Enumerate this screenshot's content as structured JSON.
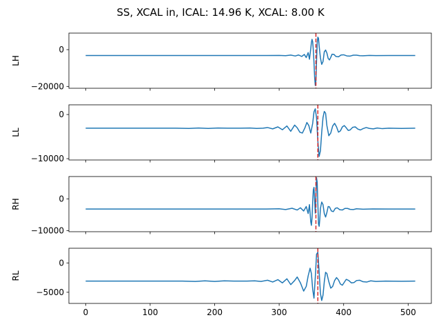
{
  "title": "SS, XCAL in, ICAL: 14.96 K, XCAL: 8.00 K",
  "colors": {
    "series": "#1f77b4",
    "marker": "#d62728",
    "axis": "#000000"
  },
  "chart_data": [
    {
      "type": "line",
      "ylabel": "LH",
      "xlim": [
        -26,
        536
      ],
      "ylim": [
        -21000,
        9000
      ],
      "yticks": [
        0,
        -20000
      ],
      "yticklabels": [
        "0",
        "−20000"
      ],
      "baseline": -3200,
      "peak_x": 357,
      "vline_x": 357,
      "points": [
        [
          0,
          -3200
        ],
        [
          280,
          -3200
        ],
        [
          300,
          -3150
        ],
        [
          310,
          -3300
        ],
        [
          318,
          -2950
        ],
        [
          325,
          -3450
        ],
        [
          330,
          -2900
        ],
        [
          335,
          -3700
        ],
        [
          339,
          -2600
        ],
        [
          342,
          -4300
        ],
        [
          345,
          -1600
        ],
        [
          347,
          -5200
        ],
        [
          349,
          500
        ],
        [
          350,
          3800
        ],
        [
          351,
          5600
        ],
        [
          352,
          4200
        ],
        [
          353,
          -500
        ],
        [
          354,
          -6800
        ],
        [
          355,
          -15000
        ],
        [
          356,
          -19500
        ],
        [
          357,
          -17000
        ],
        [
          358,
          -6000
        ],
        [
          359,
          3500
        ],
        [
          360,
          6800
        ],
        [
          361,
          6200
        ],
        [
          362,
          2000
        ],
        [
          364,
          -4500
        ],
        [
          366,
          -8000
        ],
        [
          368,
          -6500
        ],
        [
          370,
          -1200
        ],
        [
          372,
          -200
        ],
        [
          374,
          -1800
        ],
        [
          376,
          -4800
        ],
        [
          378,
          -5600
        ],
        [
          380,
          -4200
        ],
        [
          382,
          -2500
        ],
        [
          385,
          -2600
        ],
        [
          388,
          -3700
        ],
        [
          392,
          -3900
        ],
        [
          396,
          -2900
        ],
        [
          400,
          -2800
        ],
        [
          405,
          -3400
        ],
        [
          410,
          -3500
        ],
        [
          415,
          -3000
        ],
        [
          420,
          -3000
        ],
        [
          425,
          -3300
        ],
        [
          430,
          -3350
        ],
        [
          440,
          -3150
        ],
        [
          450,
          -3250
        ],
        [
          470,
          -3200
        ],
        [
          511,
          -3200
        ]
      ]
    },
    {
      "type": "line",
      "ylabel": "LL",
      "xlim": [
        -26,
        536
      ],
      "ylim": [
        -10300,
        2200
      ],
      "yticks": [
        0,
        -10000
      ],
      "yticklabels": [
        "0",
        "−10000"
      ],
      "baseline": -3100,
      "peak_x": 360,
      "vline_x": 360,
      "points": [
        [
          0,
          -3100
        ],
        [
          140,
          -3100
        ],
        [
          160,
          -3150
        ],
        [
          175,
          -3050
        ],
        [
          190,
          -3150
        ],
        [
          205,
          -3050
        ],
        [
          220,
          -3100
        ],
        [
          240,
          -3100
        ],
        [
          255,
          -3050
        ],
        [
          265,
          -3150
        ],
        [
          275,
          -3100
        ],
        [
          282,
          -2950
        ],
        [
          290,
          -3250
        ],
        [
          298,
          -2800
        ],
        [
          305,
          -3450
        ],
        [
          312,
          -2600
        ],
        [
          318,
          -3800
        ],
        [
          324,
          -2400
        ],
        [
          328,
          -3000
        ],
        [
          332,
          -4000
        ],
        [
          336,
          -4200
        ],
        [
          340,
          -3000
        ],
        [
          343,
          -1800
        ],
        [
          346,
          -2500
        ],
        [
          349,
          -4200
        ],
        [
          352,
          -2000
        ],
        [
          354,
          600
        ],
        [
          356,
          1300
        ],
        [
          358,
          -800
        ],
        [
          360,
          -6000
        ],
        [
          362,
          -9500
        ],
        [
          364,
          -8200
        ],
        [
          366,
          -4000
        ],
        [
          368,
          -700
        ],
        [
          370,
          700
        ],
        [
          372,
          300
        ],
        [
          374,
          -2500
        ],
        [
          377,
          -4800
        ],
        [
          380,
          -4200
        ],
        [
          383,
          -2600
        ],
        [
          386,
          -2000
        ],
        [
          389,
          -2800
        ],
        [
          392,
          -4000
        ],
        [
          395,
          -3700
        ],
        [
          398,
          -2800
        ],
        [
          401,
          -2500
        ],
        [
          404,
          -3000
        ],
        [
          407,
          -3600
        ],
        [
          410,
          -3500
        ],
        [
          414,
          -2900
        ],
        [
          418,
          -2800
        ],
        [
          422,
          -3300
        ],
        [
          426,
          -3500
        ],
        [
          430,
          -3200
        ],
        [
          435,
          -2950
        ],
        [
          440,
          -3150
        ],
        [
          446,
          -3250
        ],
        [
          452,
          -3050
        ],
        [
          460,
          -3200
        ],
        [
          470,
          -3100
        ],
        [
          490,
          -3150
        ],
        [
          511,
          -3100
        ]
      ]
    },
    {
      "type": "line",
      "ylabel": "RH",
      "xlim": [
        -26,
        536
      ],
      "ylim": [
        -10300,
        7000
      ],
      "yticks": [
        0,
        -10000
      ],
      "yticklabels": [
        "0",
        "−10000"
      ],
      "baseline": -3200,
      "peak_x": 357,
      "vline_x": 357,
      "points": [
        [
          0,
          -3200
        ],
        [
          280,
          -3200
        ],
        [
          300,
          -3100
        ],
        [
          310,
          -3350
        ],
        [
          320,
          -2950
        ],
        [
          328,
          -3500
        ],
        [
          333,
          -2800
        ],
        [
          338,
          -3800
        ],
        [
          342,
          -2400
        ],
        [
          345,
          -4600
        ],
        [
          347,
          -1800
        ],
        [
          349,
          -7200
        ],
        [
          350,
          -8300
        ],
        [
          351,
          -6000
        ],
        [
          352,
          -1000
        ],
        [
          353,
          2800
        ],
        [
          354,
          3600
        ],
        [
          355,
          -200
        ],
        [
          356,
          -4500
        ],
        [
          357,
          1000
        ],
        [
          358,
          6600
        ],
        [
          359,
          5200
        ],
        [
          360,
          -1500
        ],
        [
          361,
          -7800
        ],
        [
          362,
          -8600
        ],
        [
          363,
          -6500
        ],
        [
          364,
          -3000
        ],
        [
          366,
          -1000
        ],
        [
          368,
          -1800
        ],
        [
          370,
          -4600
        ],
        [
          372,
          -5700
        ],
        [
          374,
          -4300
        ],
        [
          376,
          -2400
        ],
        [
          378,
          -2500
        ],
        [
          381,
          -3800
        ],
        [
          384,
          -4000
        ],
        [
          387,
          -3000
        ],
        [
          390,
          -2800
        ],
        [
          394,
          -3400
        ],
        [
          398,
          -3500
        ],
        [
          402,
          -3000
        ],
        [
          406,
          -3000
        ],
        [
          410,
          -3300
        ],
        [
          415,
          -3350
        ],
        [
          420,
          -3100
        ],
        [
          430,
          -3250
        ],
        [
          445,
          -3150
        ],
        [
          470,
          -3200
        ],
        [
          511,
          -3200
        ]
      ]
    },
    {
      "type": "line",
      "ylabel": "RL",
      "xlim": [
        -26,
        536
      ],
      "ylim": [
        -6900,
        2500
      ],
      "yticks": [
        0,
        -5000
      ],
      "yticklabels": [
        "0",
        "−5000"
      ],
      "baseline": -3100,
      "peak_x": 360,
      "vline_x": 360,
      "points": [
        [
          0,
          -3100
        ],
        [
          150,
          -3100
        ],
        [
          170,
          -3150
        ],
        [
          185,
          -3050
        ],
        [
          200,
          -3150
        ],
        [
          215,
          -3050
        ],
        [
          230,
          -3100
        ],
        [
          250,
          -3100
        ],
        [
          262,
          -3050
        ],
        [
          272,
          -3150
        ],
        [
          282,
          -2950
        ],
        [
          290,
          -3250
        ],
        [
          298,
          -2850
        ],
        [
          305,
          -3400
        ],
        [
          312,
          -2700
        ],
        [
          318,
          -3700
        ],
        [
          324,
          -3000
        ],
        [
          328,
          -2400
        ],
        [
          333,
          -3400
        ],
        [
          338,
          -4800
        ],
        [
          342,
          -4000
        ],
        [
          345,
          -2200
        ],
        [
          348,
          -900
        ],
        [
          350,
          -1800
        ],
        [
          352,
          -4500
        ],
        [
          354,
          -6000
        ],
        [
          356,
          -2500
        ],
        [
          358,
          1500
        ],
        [
          360,
          1800
        ],
        [
          362,
          -1500
        ],
        [
          364,
          -5200
        ],
        [
          366,
          -6400
        ],
        [
          368,
          -5500
        ],
        [
          370,
          -3200
        ],
        [
          372,
          -1600
        ],
        [
          374,
          -1800
        ],
        [
          377,
          -3200
        ],
        [
          380,
          -4300
        ],
        [
          383,
          -4000
        ],
        [
          386,
          -3000
        ],
        [
          389,
          -2500
        ],
        [
          392,
          -2900
        ],
        [
          395,
          -3600
        ],
        [
          398,
          -3800
        ],
        [
          401,
          -3300
        ],
        [
          404,
          -2800
        ],
        [
          408,
          -3000
        ],
        [
          412,
          -3400
        ],
        [
          416,
          -3350
        ],
        [
          420,
          -3000
        ],
        [
          425,
          -2950
        ],
        [
          430,
          -3200
        ],
        [
          436,
          -3250
        ],
        [
          442,
          -3050
        ],
        [
          450,
          -3150
        ],
        [
          465,
          -3100
        ],
        [
          490,
          -3120
        ],
        [
          511,
          -3100
        ]
      ]
    }
  ],
  "x_axis": {
    "ticks": [
      0,
      100,
      200,
      300,
      400,
      500
    ],
    "labels": [
      "0",
      "100",
      "200",
      "300",
      "400",
      "500"
    ]
  }
}
